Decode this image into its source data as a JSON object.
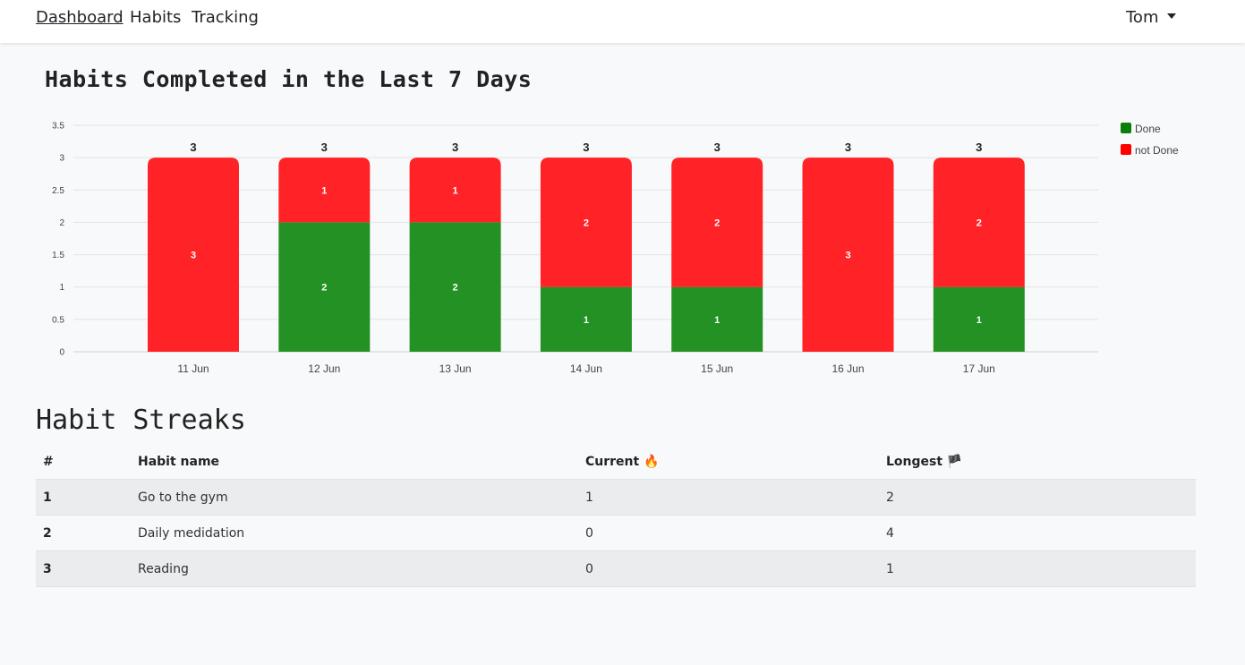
{
  "navbar": {
    "links": [
      "Dashboard",
      "Habits",
      "Tracking"
    ],
    "user": "Tom"
  },
  "chart_title": "Habits Completed in the Last 7 Days",
  "chart_data": {
    "type": "bar",
    "stacked": true,
    "categories": [
      "11 Jun",
      "12 Jun",
      "13 Jun",
      "14 Jun",
      "15 Jun",
      "16 Jun",
      "17 Jun"
    ],
    "series": [
      {
        "name": "Done",
        "values": [
          0,
          2,
          2,
          1,
          1,
          0,
          1
        ],
        "color": "#0a7d0a"
      },
      {
        "name": "not Done",
        "values": [
          3,
          1,
          1,
          2,
          2,
          3,
          2
        ],
        "color": "#ff0000"
      }
    ],
    "totals": [
      3,
      3,
      3,
      3,
      3,
      3,
      3
    ],
    "yticks": [
      "0",
      "0.5",
      "1",
      "1.5",
      "2",
      "2.5",
      "3",
      "3.5"
    ],
    "ylim": [
      0,
      3.5
    ],
    "grid": true,
    "legend": "right"
  },
  "streaks": {
    "title": "Habit Streaks",
    "headers": {
      "num": "#",
      "name": "Habit name",
      "current": "Current 🔥",
      "longest": "Longest 🏴"
    },
    "rows": [
      {
        "num": "1",
        "name": "Go to the gym",
        "current": "1",
        "longest": "2"
      },
      {
        "num": "2",
        "name": "Daily medidation",
        "current": "0",
        "longest": "4"
      },
      {
        "num": "3",
        "name": "Reading",
        "current": "0",
        "longest": "1"
      }
    ]
  }
}
